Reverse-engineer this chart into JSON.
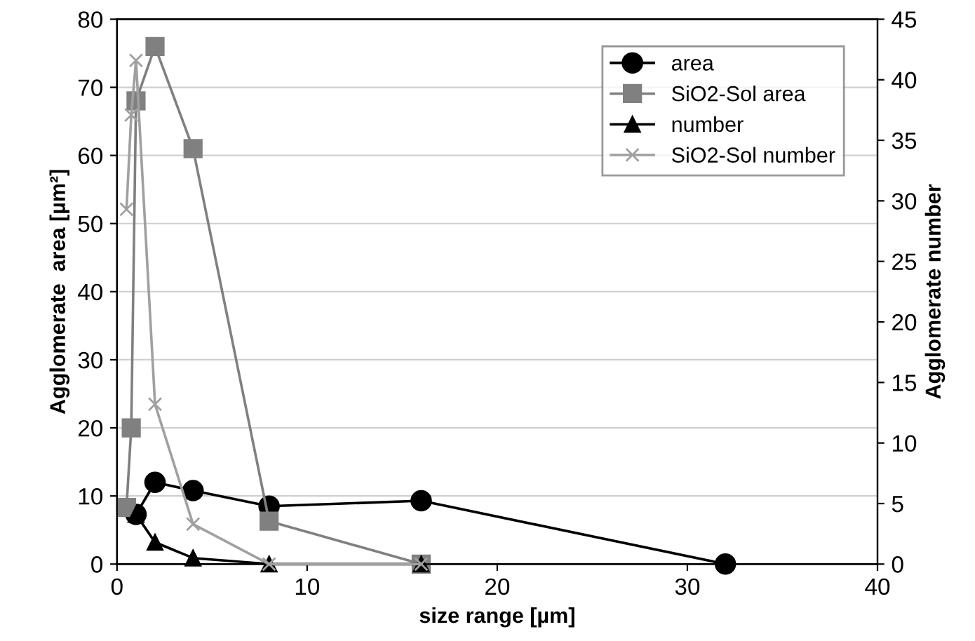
{
  "chart_data": {
    "type": "line",
    "xlabel": "size range [µm]",
    "ylabel": "Agglomerate  area [µm²]",
    "y2label": "Agglomerate number",
    "xlim": [
      0,
      40
    ],
    "xticks": [
      0,
      10,
      20,
      30,
      40
    ],
    "ylim": [
      0,
      80
    ],
    "yticks": [
      0,
      10,
      20,
      30,
      40,
      50,
      60,
      70,
      80
    ],
    "y2lim": [
      0,
      45
    ],
    "y2ticks": [
      0,
      5,
      10,
      15,
      20,
      25,
      30,
      35,
      40,
      45
    ],
    "grid": "y",
    "legend": "top right",
    "series": [
      {
        "name": "area",
        "color": "#000000",
        "marker": "circle",
        "x": [
          1,
          2,
          4,
          8,
          16,
          32
        ],
        "values": [
          7.3,
          12,
          10.8,
          8.5,
          9.3,
          0
        ]
      },
      {
        "name": "SiO2-Sol area",
        "color": "#808080",
        "marker": "square",
        "x": [
          0.5,
          0.75,
          1,
          2,
          4,
          8,
          16
        ],
        "values": [
          8.3,
          20,
          68,
          76,
          61,
          6.3,
          0
        ]
      },
      {
        "name": "number",
        "color": "#000000",
        "marker": "triangle",
        "axis": "y2",
        "x": [
          1,
          2,
          4,
          8,
          16
        ],
        "values": [
          4.1,
          1.8,
          0.5,
          0,
          0
        ]
      },
      {
        "name": "SiO2-Sol number",
        "color": "#a0a0a0",
        "marker": "cross",
        "axis": "y2",
        "x": [
          0.5,
          0.75,
          1,
          2,
          4,
          8,
          16
        ],
        "values": [
          29.3,
          37.1,
          41.6,
          13.2,
          3.3,
          0,
          0
        ]
      }
    ]
  }
}
